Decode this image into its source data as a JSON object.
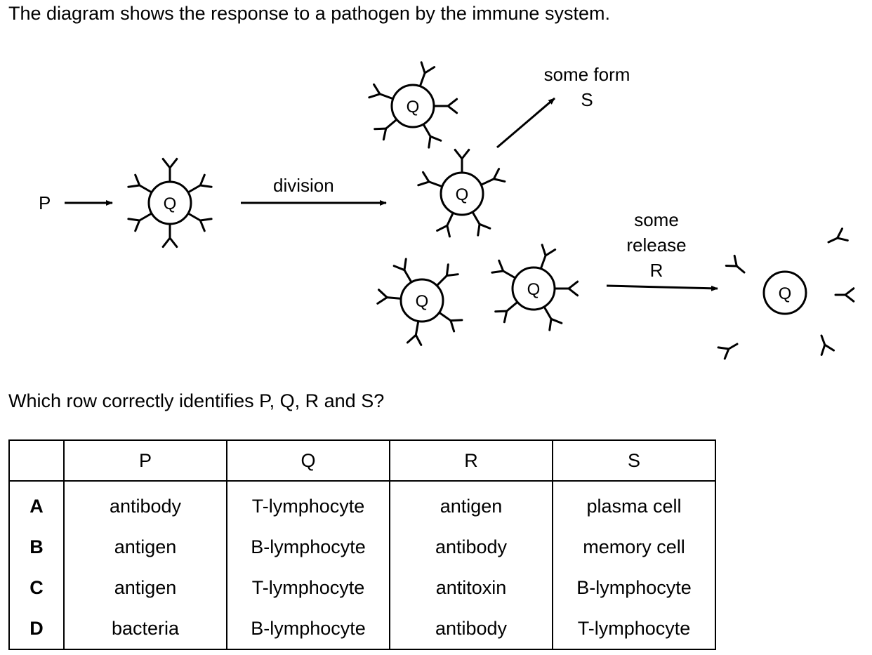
{
  "intro_text": "The diagram shows the response to a pathogen by the immune system.",
  "diagram": {
    "label_P": "P",
    "cell_label": "Q",
    "division_label": "division",
    "form_label_line1": "some form",
    "form_label_line2": "S",
    "release_label_line1": "some",
    "release_label_line2": "release",
    "release_label_line3": "R"
  },
  "question_text": "Which row correctly identifies P, Q, R and S?",
  "table": {
    "headers": [
      "",
      "P",
      "Q",
      "R",
      "S"
    ],
    "rows": [
      {
        "label": "A",
        "P": "antibody",
        "Q": "T-lymphocyte",
        "R": "antigen",
        "S": "plasma cell"
      },
      {
        "label": "B",
        "P": "antigen",
        "Q": "B-lymphocyte",
        "R": "antibody",
        "S": "memory cell"
      },
      {
        "label": "C",
        "P": "antigen",
        "Q": "T-lymphocyte",
        "R": "antitoxin",
        "S": "B-lymphocyte"
      },
      {
        "label": "D",
        "P": "bacteria",
        "Q": "B-lymphocyte",
        "R": "antibody",
        "S": "T-lymphocyte"
      }
    ]
  }
}
